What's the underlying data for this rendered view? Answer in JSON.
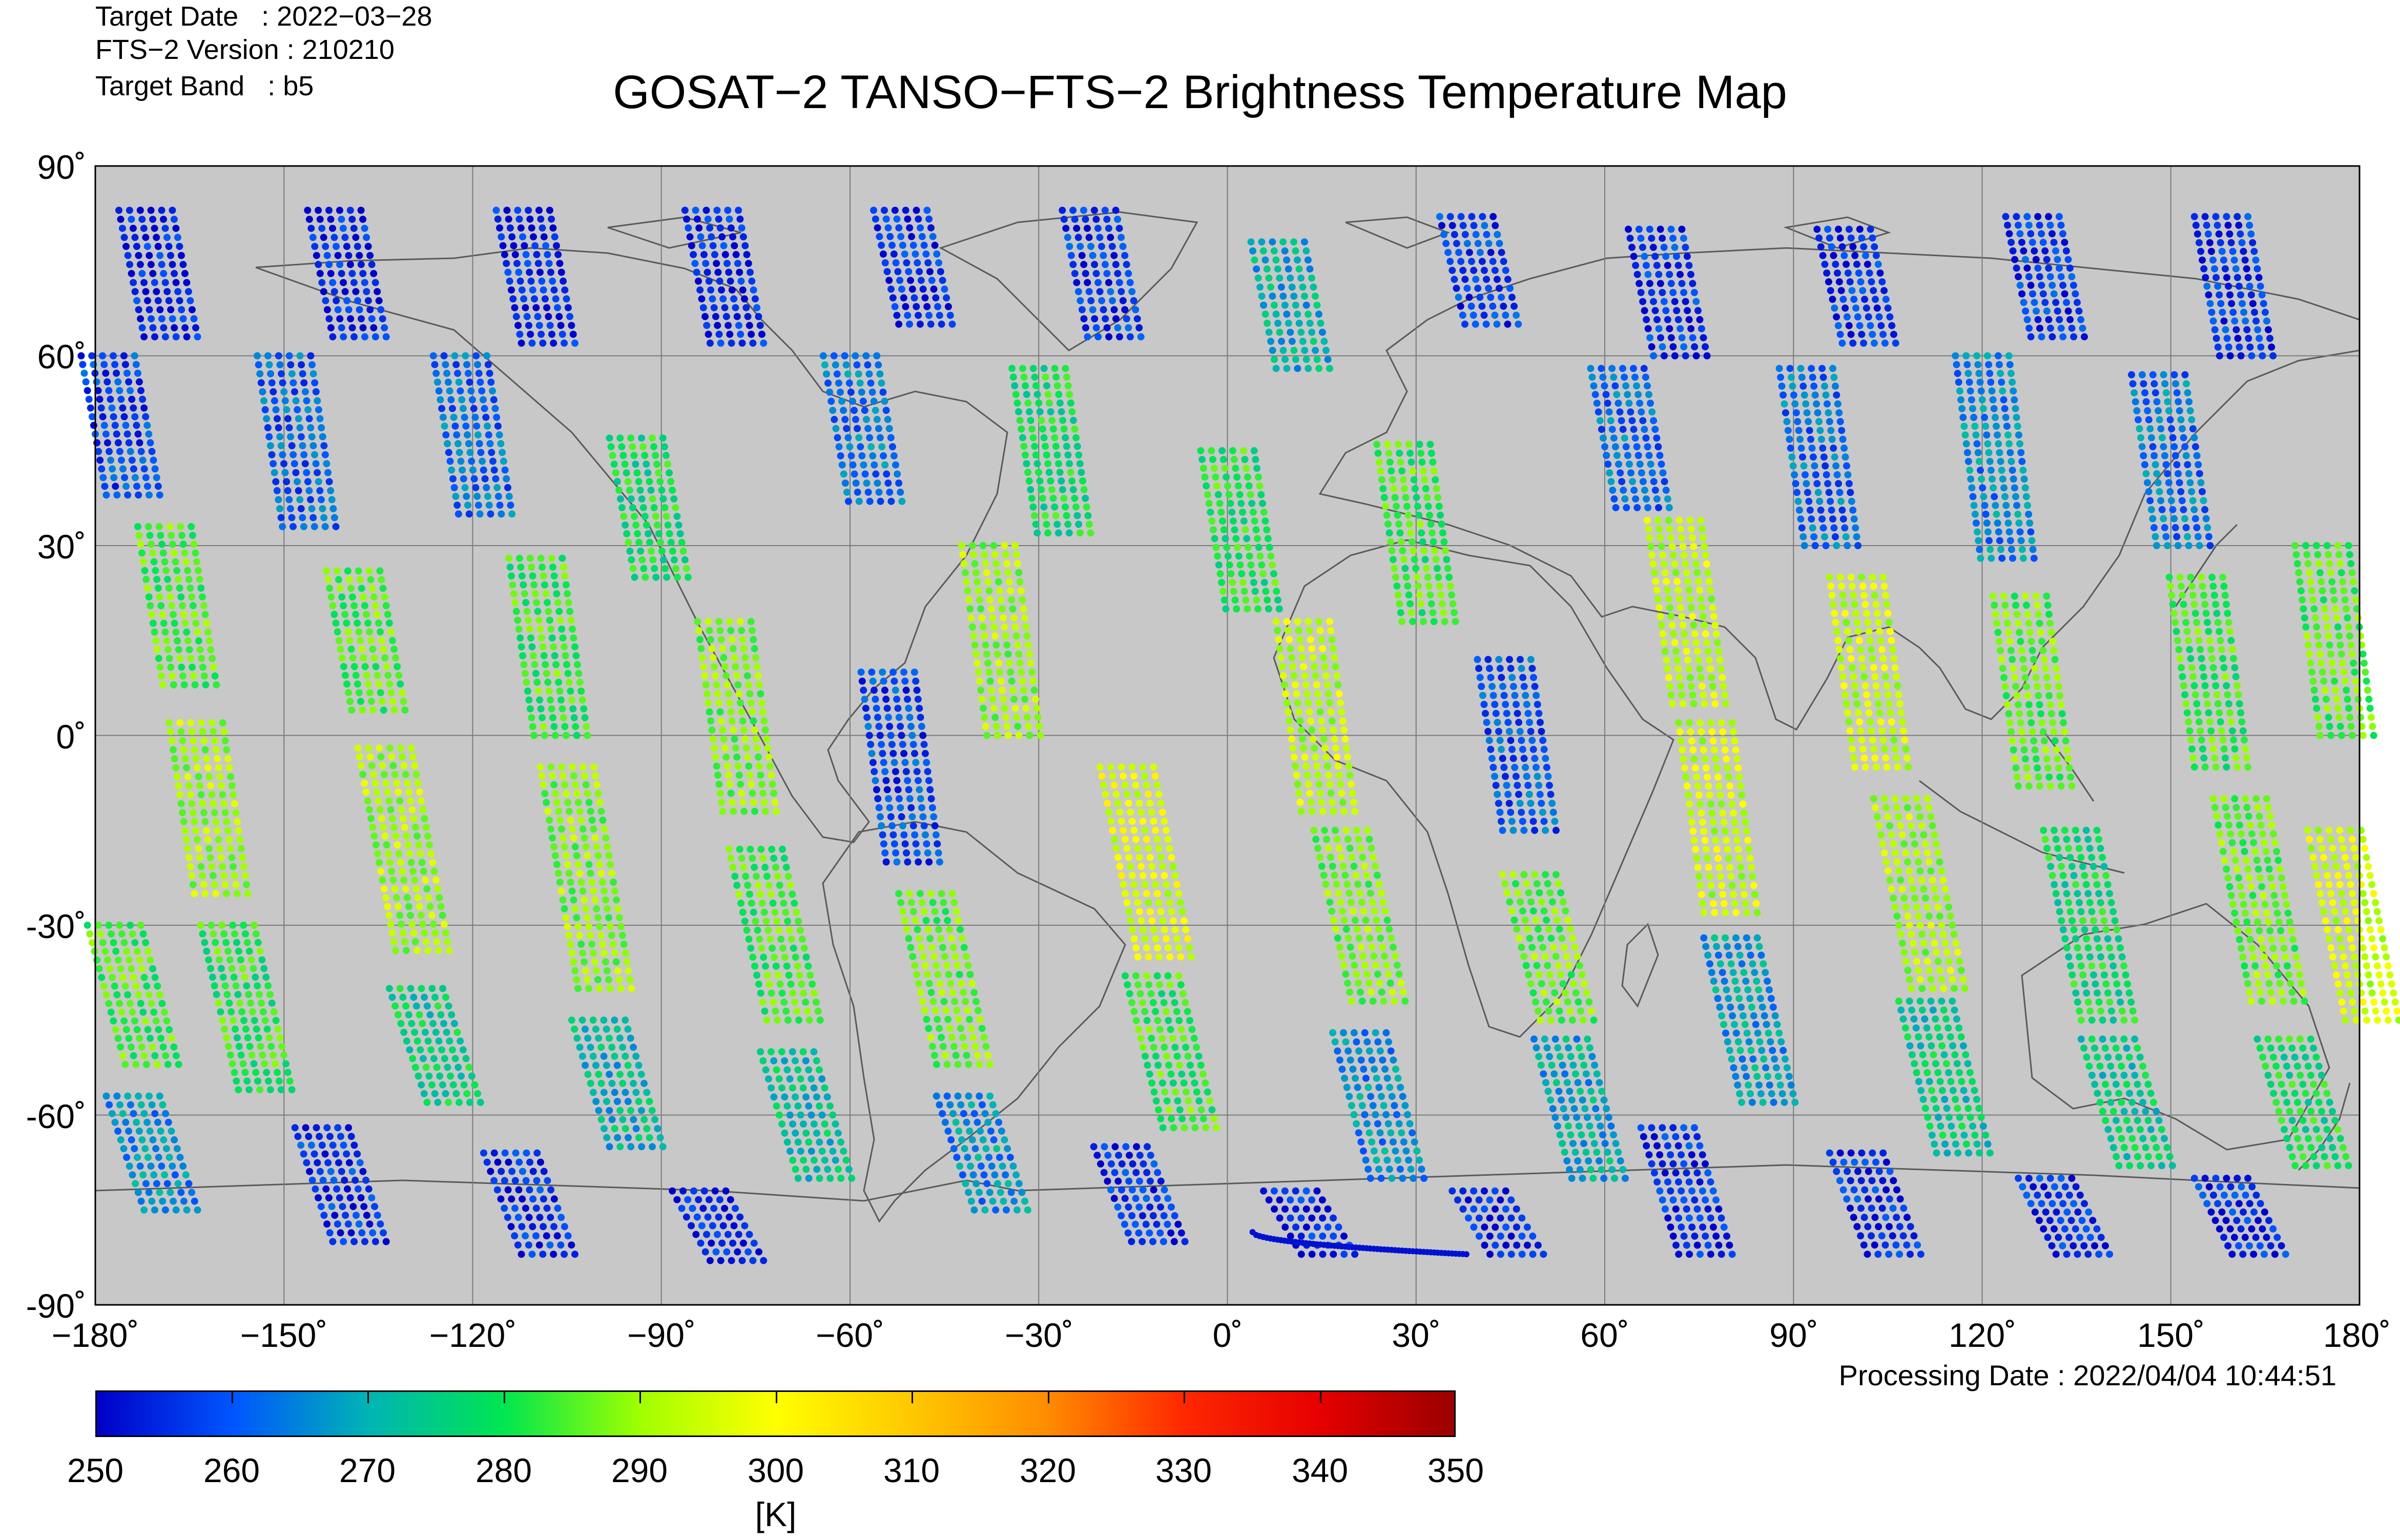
{
  "header": {
    "target_date": "Target Date   : 2022−03−28",
    "version": "FTS−2 Version : 210210",
    "target_band": "Target Band   : b5"
  },
  "title": "GOSAT−2 TANSO−FTS−2 Brightness Temperature Map",
  "axes": {
    "lat_labels": [
      "90˚",
      "60˚",
      "30˚",
      "0˚",
      "-30˚",
      "-60˚",
      "-90˚"
    ],
    "lon_labels": [
      "−180˚",
      "−150˚",
      "−120˚",
      "−90˚",
      "−60˚",
      "−30˚",
      "0˚",
      "30˚",
      "60˚",
      "90˚",
      "120˚",
      "150˚",
      "180˚"
    ]
  },
  "processing_date": "Processing Date : 2022/04/04 10:44:51",
  "colorbar": {
    "labels": [
      "250",
      "260",
      "270",
      "280",
      "290",
      "300",
      "310",
      "320",
      "330",
      "340",
      "350"
    ],
    "unit": "[K]",
    "min": 250,
    "max": 350
  },
  "chart_data": {
    "type": "scatter",
    "title": "GOSAT−2 TANSO−FTS−2 Brightness Temperature Map",
    "projection": "equirectangular",
    "xlim": [
      -180,
      180
    ],
    "ylim": [
      -90,
      90
    ],
    "xticks": [
      -180,
      -150,
      -120,
      -90,
      -60,
      -30,
      0,
      30,
      60,
      90,
      120,
      150,
      180
    ],
    "yticks": [
      -90,
      -60,
      -30,
      0,
      30,
      60,
      90
    ],
    "grid": true,
    "background_color": "#c8c8c8",
    "colormap": [
      "#0000c8",
      "#0055ff",
      "#00b4b4",
      "#00e650",
      "#a0ff00",
      "#ffff00",
      "#ffc800",
      "#ff8c00",
      "#ff2800",
      "#e60000",
      "#9b0000"
    ],
    "value_range": [
      250,
      350
    ],
    "orbit_track_longitudes_at_equator": [
      -172,
      -142,
      -112,
      -82,
      -52,
      -22,
      8,
      38,
      68,
      98,
      128,
      158
    ],
    "segments": [
      {
        "lon": -170,
        "lat0": 83,
        "lat1": 63,
        "value": 254
      },
      {
        "lon": -176,
        "lat0": 60,
        "lat1": 38,
        "value": 258
      },
      {
        "lon": -167,
        "lat0": 33,
        "lat1": 8,
        "value": 285
      },
      {
        "lon": -162,
        "lat0": 2,
        "lat1": -25,
        "value": 291
      },
      {
        "lon": -157,
        "lat0": -30,
        "lat1": -56,
        "value": 282
      },
      {
        "lon": -175,
        "lat0": -30,
        "lat1": -52,
        "value": 284
      },
      {
        "lon": -172,
        "lat0": -57,
        "lat1": -75,
        "value": 266
      },
      {
        "lon": -140,
        "lat0": 83,
        "lat1": 63,
        "value": 254
      },
      {
        "lon": -148,
        "lat0": 60,
        "lat1": 33,
        "value": 261
      },
      {
        "lon": -137,
        "lat0": 26,
        "lat1": 4,
        "value": 285
      },
      {
        "lon": -132,
        "lat0": -2,
        "lat1": -34,
        "value": 291
      },
      {
        "lon": -127,
        "lat0": -40,
        "lat1": -58,
        "value": 276
      },
      {
        "lon": -142,
        "lat0": -62,
        "lat1": -80,
        "value": 256
      },
      {
        "lon": -110,
        "lat0": 83,
        "lat1": 62,
        "value": 254
      },
      {
        "lon": -120,
        "lat0": 60,
        "lat1": 35,
        "value": 262
      },
      {
        "lon": -108,
        "lat0": 28,
        "lat1": 0,
        "value": 283
      },
      {
        "lon": -103,
        "lat0": -5,
        "lat1": -40,
        "value": 289
      },
      {
        "lon": -98,
        "lat0": -45,
        "lat1": -65,
        "value": 271
      },
      {
        "lon": -112,
        "lat0": -66,
        "lat1": -82,
        "value": 255
      },
      {
        "lon": -80,
        "lat0": 83,
        "lat1": 62,
        "value": 254
      },
      {
        "lon": -92,
        "lat0": 47,
        "lat1": 25,
        "value": 279
      },
      {
        "lon": -78,
        "lat0": 18,
        "lat1": -12,
        "value": 288
      },
      {
        "lon": -73,
        "lat0": -18,
        "lat1": -45,
        "value": 284
      },
      {
        "lon": -68,
        "lat0": -50,
        "lat1": -70,
        "value": 273
      },
      {
        "lon": -82,
        "lat0": -72,
        "lat1": -83,
        "value": 254
      },
      {
        "lon": -50,
        "lat0": 83,
        "lat1": 65,
        "value": 255
      },
      {
        "lon": -58,
        "lat0": 60,
        "lat1": 37,
        "value": 263
      },
      {
        "lon": -52,
        "lat0": 10,
        "lat1": -20,
        "value": 258
      },
      {
        "lon": -46,
        "lat0": -25,
        "lat1": -52,
        "value": 287
      },
      {
        "lon": -40,
        "lat0": -57,
        "lat1": -75,
        "value": 266
      },
      {
        "lon": -20,
        "lat0": 83,
        "lat1": 63,
        "value": 256
      },
      {
        "lon": -28,
        "lat0": 58,
        "lat1": 32,
        "value": 279
      },
      {
        "lon": -36,
        "lat0": 30,
        "lat1": 0,
        "value": 290
      },
      {
        "lon": -14,
        "lat0": -5,
        "lat1": -35,
        "value": 296
      },
      {
        "lon": -10,
        "lat0": -38,
        "lat1": -62,
        "value": 283
      },
      {
        "lon": -15,
        "lat0": -65,
        "lat1": -80,
        "value": 256
      },
      {
        "lon": 10,
        "lat0": 78,
        "lat1": 58,
        "value": 270
      },
      {
        "lon": 2,
        "lat0": 45,
        "lat1": 20,
        "value": 281
      },
      {
        "lon": 14,
        "lat0": 18,
        "lat1": -12,
        "value": 293
      },
      {
        "lon": 20,
        "lat0": -15,
        "lat1": -42,
        "value": 288
      },
      {
        "lon": 23,
        "lat0": -47,
        "lat1": -70,
        "value": 266
      },
      {
        "lon": 12,
        "lat0": -72,
        "lat1": -82,
        "value": 254
      },
      {
        "lon": 40,
        "lat0": 82,
        "lat1": 65,
        "value": 257
      },
      {
        "lon": 30,
        "lat0": 46,
        "lat1": 18,
        "value": 283
      },
      {
        "lon": 46,
        "lat0": 12,
        "lat1": -15,
        "value": 260
      },
      {
        "lon": 50,
        "lat0": -22,
        "lat1": -45,
        "value": 287
      },
      {
        "lon": 55,
        "lat0": -48,
        "lat1": -70,
        "value": 269
      },
      {
        "lon": 42,
        "lat0": -72,
        "lat1": -82,
        "value": 254
      },
      {
        "lon": 70,
        "lat0": 80,
        "lat1": 60,
        "value": 256
      },
      {
        "lon": 64,
        "lat0": 58,
        "lat1": 36,
        "value": 262
      },
      {
        "lon": 73,
        "lat0": 34,
        "lat1": 5,
        "value": 293
      },
      {
        "lon": 78,
        "lat0": 2,
        "lat1": -28,
        "value": 294
      },
      {
        "lon": 82,
        "lat0": -32,
        "lat1": -58,
        "value": 268
      },
      {
        "lon": 72,
        "lat0": -62,
        "lat1": -82,
        "value": 255
      },
      {
        "lon": 100,
        "lat0": 80,
        "lat1": 62,
        "value": 256
      },
      {
        "lon": 94,
        "lat0": 58,
        "lat1": 30,
        "value": 262
      },
      {
        "lon": 102,
        "lat0": 25,
        "lat1": -5,
        "value": 294
      },
      {
        "lon": 109,
        "lat0": -10,
        "lat1": -40,
        "value": 291
      },
      {
        "lon": 113,
        "lat0": -42,
        "lat1": -66,
        "value": 275
      },
      {
        "lon": 102,
        "lat0": -66,
        "lat1": -82,
        "value": 255
      },
      {
        "lon": 130,
        "lat0": 82,
        "lat1": 63,
        "value": 256
      },
      {
        "lon": 122,
        "lat0": 60,
        "lat1": 28,
        "value": 265
      },
      {
        "lon": 128,
        "lat0": 22,
        "lat1": -8,
        "value": 286
      },
      {
        "lon": 136,
        "lat0": -15,
        "lat1": -45,
        "value": 278
      },
      {
        "lon": 142,
        "lat0": -48,
        "lat1": -68,
        "value": 275
      },
      {
        "lon": 132,
        "lat0": -70,
        "lat1": -82,
        "value": 255
      },
      {
        "lon": 160,
        "lat0": 82,
        "lat1": 60,
        "value": 256
      },
      {
        "lon": 150,
        "lat0": 57,
        "lat1": 30,
        "value": 263
      },
      {
        "lon": 156,
        "lat0": 25,
        "lat1": -5,
        "value": 283
      },
      {
        "lon": 163,
        "lat0": -10,
        "lat1": -42,
        "value": 287
      },
      {
        "lon": 170,
        "lat0": -48,
        "lat1": -68,
        "value": 279
      },
      {
        "lon": 160,
        "lat0": -70,
        "lat1": -82,
        "value": 255
      },
      {
        "lon": 176,
        "lat0": 30,
        "lat1": 0,
        "value": 285
      },
      {
        "lon": 178,
        "lat0": -15,
        "lat1": -45,
        "value": 295
      }
    ],
    "antarctic_track": {
      "lon0": 4,
      "lat0": -78.5,
      "lon1": 38,
      "lat1": -82,
      "value": 252
    }
  }
}
